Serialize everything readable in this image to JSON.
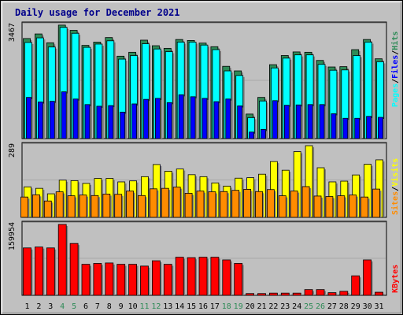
{
  "title": "Daily usage for December 2021",
  "colors": {
    "hits": "#2e8b57",
    "files": "#00ffff",
    "pages": "#0000ff",
    "visits": "#ffff00",
    "sites": "#ff8c00",
    "kbytes": "#ff0000",
    "weekend_label": "#2e8b57",
    "weekday_label": "#000000"
  },
  "legend": {
    "top": [
      "Pages",
      "Files",
      "Hits"
    ],
    "middle": [
      "Sites",
      "Visits"
    ],
    "bottom": [
      "KBytes"
    ],
    "separator": "/"
  },
  "chart_data": [
    {
      "type": "bar",
      "panel": "top",
      "ymax_label": "3467",
      "ylim": [
        0,
        3467
      ],
      "x": [
        "1",
        "2",
        "3",
        "4",
        "5",
        "6",
        "7",
        "8",
        "9",
        "10",
        "11",
        "12",
        "13",
        "14",
        "15",
        "16",
        "17",
        "18",
        "19",
        "20",
        "21",
        "22",
        "23",
        "24",
        "25",
        "26",
        "27",
        "28",
        "29",
        "30",
        "31"
      ],
      "weekend": [
        "4",
        "5",
        "11",
        "12",
        "18",
        "19",
        "25",
        "26"
      ],
      "series": [
        {
          "name": "Hits",
          "values": [
            3060,
            3200,
            2930,
            3470,
            3310,
            2850,
            2950,
            3090,
            2520,
            2640,
            3010,
            2840,
            2760,
            3030,
            3000,
            2920,
            2810,
            2210,
            2070,
            750,
            1260,
            2260,
            2540,
            2650,
            2640,
            2390,
            2190,
            2200,
            2720,
            3030,
            2440
          ]
        },
        {
          "name": "Files",
          "values": [
            2940,
            3080,
            2800,
            3400,
            3220,
            2790,
            2890,
            2990,
            2430,
            2540,
            2900,
            2740,
            2660,
            2950,
            2950,
            2860,
            2720,
            2070,
            1930,
            640,
            1150,
            2160,
            2460,
            2560,
            2560,
            2270,
            2090,
            2100,
            2540,
            2950,
            2350
          ]
        },
        {
          "name": "Pages",
          "values": [
            1260,
            1120,
            1140,
            1430,
            1210,
            1040,
            990,
            1010,
            810,
            1060,
            1200,
            1230,
            1100,
            1340,
            1280,
            1230,
            1130,
            1210,
            1000,
            200,
            280,
            1160,
            1020,
            1030,
            1040,
            1040,
            760,
            620,
            620,
            680,
            650
          ]
        }
      ]
    },
    {
      "type": "bar",
      "panel": "middle",
      "ymax_label": "289",
      "ylim": [
        0,
        289
      ],
      "x": [
        "1",
        "2",
        "3",
        "4",
        "5",
        "6",
        "7",
        "8",
        "9",
        "10",
        "11",
        "12",
        "13",
        "14",
        "15",
        "16",
        "17",
        "18",
        "19",
        "20",
        "21",
        "22",
        "23",
        "24",
        "25",
        "26",
        "27",
        "28",
        "29",
        "30",
        "31"
      ],
      "weekend": [
        "4",
        "5",
        "11",
        "12",
        "18",
        "19",
        "25",
        "26"
      ],
      "series": [
        {
          "name": "Visits",
          "values": [
            123,
            117,
            95,
            150,
            148,
            137,
            157,
            157,
            143,
            147,
            164,
            213,
            186,
            195,
            172,
            164,
            139,
            126,
            158,
            160,
            174,
            225,
            190,
            265,
            289,
            200,
            143,
            146,
            171,
            214,
            232
          ]
        },
        {
          "name": "Sites",
          "values": [
            82,
            91,
            66,
            103,
            87,
            90,
            88,
            94,
            93,
            106,
            88,
            115,
            117,
            122,
            97,
            106,
            103,
            104,
            109,
            113,
            104,
            112,
            87,
            106,
            124,
            86,
            84,
            87,
            90,
            82,
            114
          ]
        }
      ]
    },
    {
      "type": "bar",
      "panel": "bottom",
      "ymax_label": "159954",
      "ylim": [
        0,
        159954
      ],
      "x": [
        "1",
        "2",
        "3",
        "4",
        "5",
        "6",
        "7",
        "8",
        "9",
        "10",
        "11",
        "12",
        "13",
        "14",
        "15",
        "16",
        "17",
        "18",
        "19",
        "20",
        "21",
        "22",
        "23",
        "24",
        "25",
        "26",
        "27",
        "28",
        "29",
        "30",
        "31"
      ],
      "weekend": [
        "4",
        "5",
        "11",
        "12",
        "18",
        "19",
        "25",
        "26"
      ],
      "series": [
        {
          "name": "KBytes",
          "values": [
            107000,
            109000,
            107000,
            159954,
            117000,
            70000,
            72000,
            73000,
            70000,
            70000,
            66000,
            78000,
            70000,
            86000,
            85000,
            86000,
            86000,
            80000,
            72000,
            4000,
            4000,
            5000,
            5000,
            5000,
            13000,
            13000,
            6000,
            9000,
            44000,
            80000,
            7000
          ]
        }
      ]
    }
  ]
}
